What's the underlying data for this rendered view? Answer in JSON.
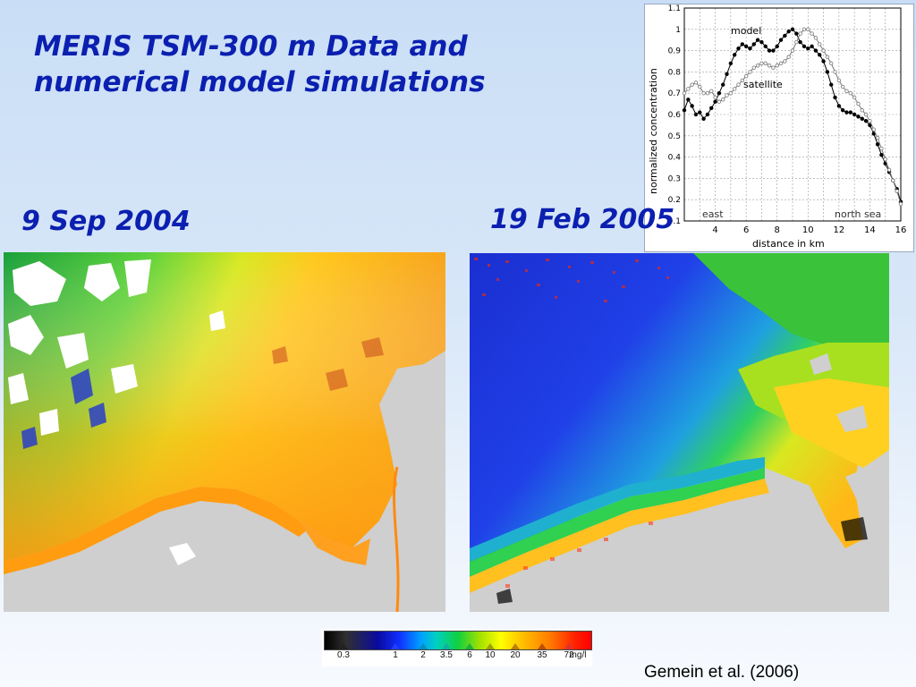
{
  "slide": {
    "title_line1": "MERIS TSM-300 m Data  and",
    "title_line2": "numerical model simulations",
    "date_left": "9 Sep 2004",
    "date_right": "19 Feb 2005",
    "citation": "Gemein et al. (2006)"
  },
  "colorbar": {
    "ticks": [
      "0.3",
      "1",
      "2",
      "3.5",
      "6",
      "10",
      "20",
      "35",
      "72"
    ],
    "unit": "mg/l",
    "marker_colors": [
      "#222222",
      "#2040ff",
      "#0090c0",
      "#10b0a0",
      "#20b040",
      "#a0a000",
      "#c08000",
      "#c05000",
      "#e03030"
    ]
  },
  "chart_data": {
    "type": "line",
    "xlabel": "distance  in  km",
    "ylabel": "normalized  concentration",
    "xlim": [
      2,
      16
    ],
    "ylim": [
      0.1,
      1.1
    ],
    "xticks": [
      4,
      6,
      8,
      10,
      12,
      14,
      16
    ],
    "yticks": [
      0.1,
      0.2,
      0.3,
      0.4,
      0.5,
      0.6,
      0.7,
      0.8,
      0.9,
      1,
      1.1
    ],
    "grid": true,
    "annotations": {
      "left_end": "east",
      "right_end": "north sea"
    },
    "series": [
      {
        "name": "model",
        "marker": "filled",
        "color": "#000000",
        "x": [
          2.0,
          2.25,
          2.5,
          2.75,
          3.0,
          3.25,
          3.5,
          3.75,
          4.0,
          4.25,
          4.5,
          4.75,
          5.0,
          5.25,
          5.5,
          5.75,
          6.0,
          6.25,
          6.5,
          6.75,
          7.0,
          7.25,
          7.5,
          7.75,
          8.0,
          8.25,
          8.5,
          8.75,
          9.0,
          9.25,
          9.5,
          9.75,
          10.0,
          10.25,
          10.5,
          10.75,
          11.0,
          11.25,
          11.5,
          11.75,
          12.0,
          12.25,
          12.5,
          12.75,
          13.0,
          13.25,
          13.5,
          13.75,
          14.0,
          14.25,
          14.5,
          14.75,
          15.0,
          15.25,
          15.5,
          15.75,
          16.0
        ],
        "y": [
          0.62,
          0.67,
          0.64,
          0.6,
          0.61,
          0.58,
          0.6,
          0.63,
          0.66,
          0.7,
          0.74,
          0.79,
          0.84,
          0.88,
          0.91,
          0.93,
          0.92,
          0.91,
          0.93,
          0.95,
          0.94,
          0.92,
          0.9,
          0.9,
          0.92,
          0.95,
          0.97,
          0.99,
          1.0,
          0.98,
          0.94,
          0.92,
          0.91,
          0.92,
          0.9,
          0.88,
          0.85,
          0.8,
          0.74,
          0.68,
          0.64,
          0.62,
          0.61,
          0.61,
          0.6,
          0.59,
          0.58,
          0.57,
          0.55,
          0.51,
          0.46,
          0.41,
          0.37,
          0.33,
          0.29,
          0.25,
          0.19
        ]
      },
      {
        "name": "satellite",
        "marker": "open",
        "color": "#777777",
        "x": [
          2.0,
          2.25,
          2.5,
          2.75,
          3.0,
          3.25,
          3.5,
          3.75,
          4.0,
          4.25,
          4.5,
          4.75,
          5.0,
          5.25,
          5.5,
          5.75,
          6.0,
          6.25,
          6.5,
          6.75,
          7.0,
          7.25,
          7.5,
          7.75,
          8.0,
          8.25,
          8.5,
          8.75,
          9.0,
          9.25,
          9.5,
          9.75,
          10.0,
          10.25,
          10.5,
          10.75,
          11.0,
          11.25,
          11.5,
          11.75,
          12.0,
          12.25,
          12.5,
          12.75,
          13.0,
          13.25,
          13.5,
          13.75,
          14.0,
          14.25,
          14.5,
          14.75,
          15.0,
          15.25,
          15.5,
          15.75,
          16.0
        ],
        "y": [
          0.7,
          0.72,
          0.74,
          0.75,
          0.73,
          0.7,
          0.7,
          0.71,
          0.68,
          0.66,
          0.67,
          0.69,
          0.7,
          0.72,
          0.74,
          0.76,
          0.78,
          0.8,
          0.82,
          0.83,
          0.84,
          0.84,
          0.83,
          0.82,
          0.83,
          0.84,
          0.85,
          0.87,
          0.9,
          0.94,
          0.98,
          1.0,
          1.0,
          0.98,
          0.96,
          0.93,
          0.9,
          0.87,
          0.84,
          0.8,
          0.76,
          0.73,
          0.71,
          0.7,
          0.68,
          0.65,
          0.62,
          0.6,
          0.57,
          0.53,
          0.49,
          0.44,
          0.39,
          0.34,
          0.29,
          0.24,
          0.18
        ]
      }
    ]
  }
}
